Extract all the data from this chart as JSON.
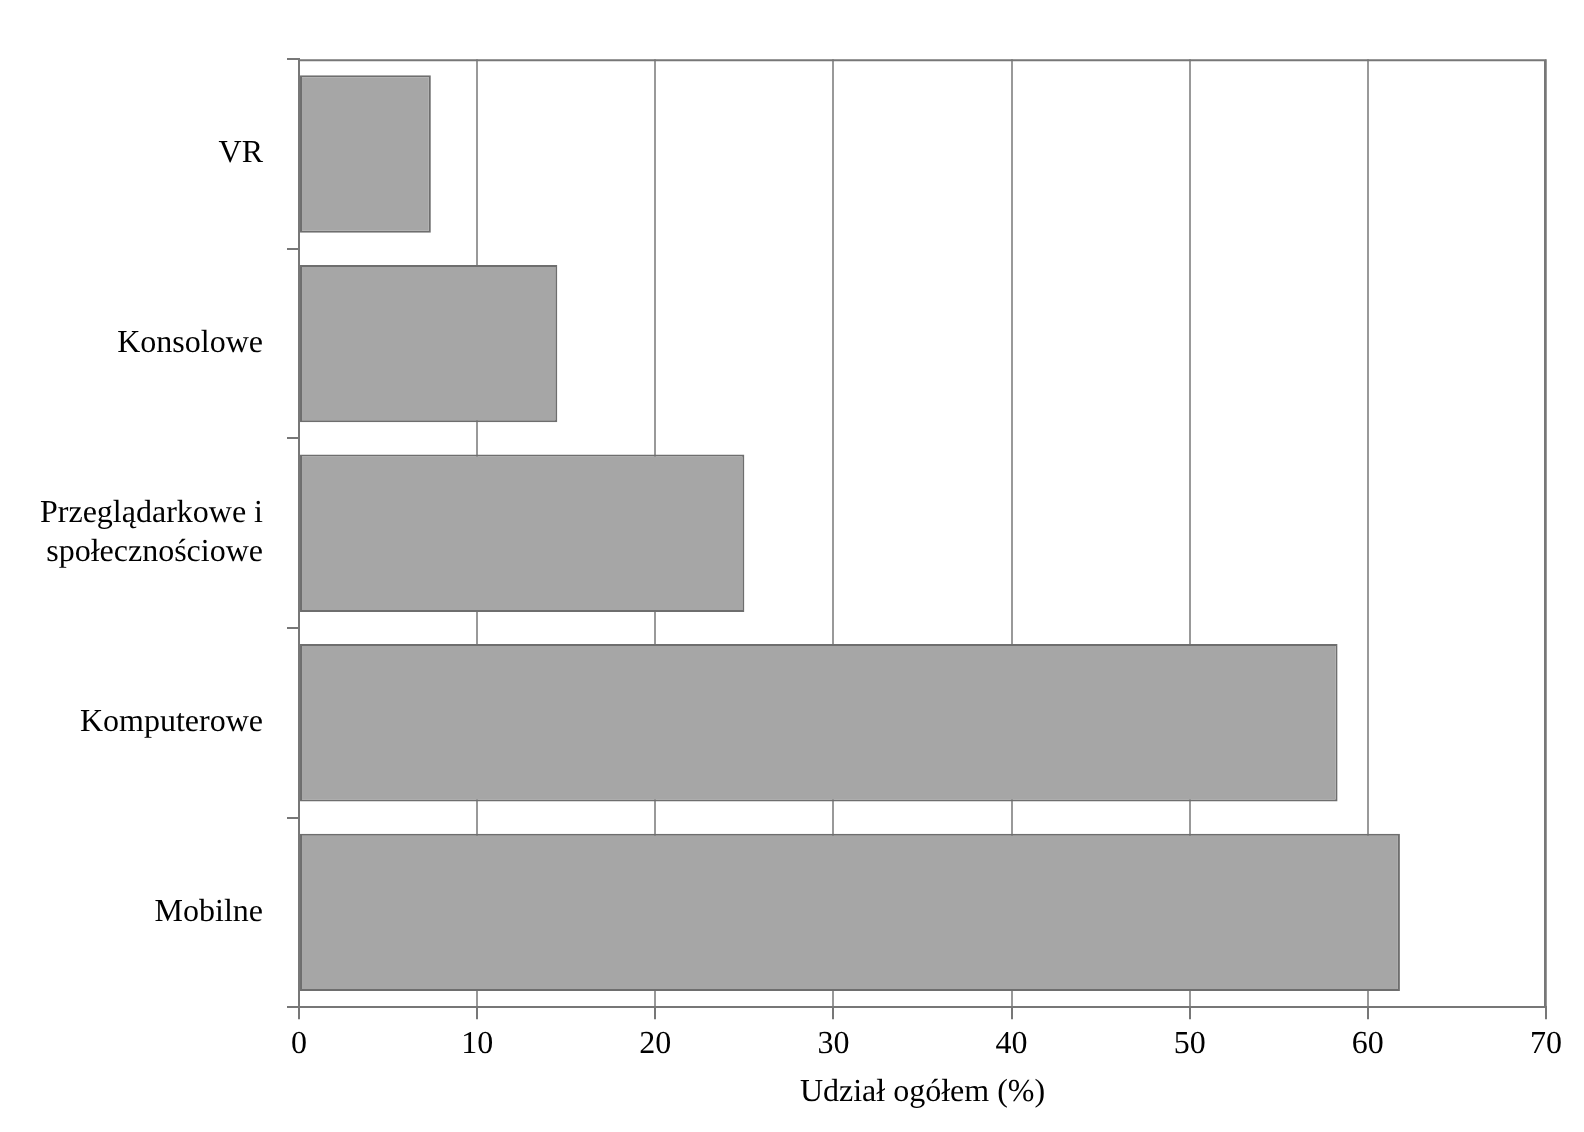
{
  "chart_data": {
    "type": "bar",
    "orientation": "horizontal",
    "xlabel": "Udział ogółem (%)",
    "categories": [
      "VR",
      "Konsolowe",
      "Przeglądarkowe i społecznościowe",
      "Komputerowe",
      "Mobilne"
    ],
    "values": [
      7.4,
      14.5,
      25.0,
      58.3,
      61.8
    ],
    "color": "#a6a6a6",
    "xlim": [
      0,
      70
    ],
    "xticks": [
      0,
      10,
      20,
      30,
      40,
      50,
      60,
      70
    ],
    "grid": "x",
    "legend": false
  }
}
